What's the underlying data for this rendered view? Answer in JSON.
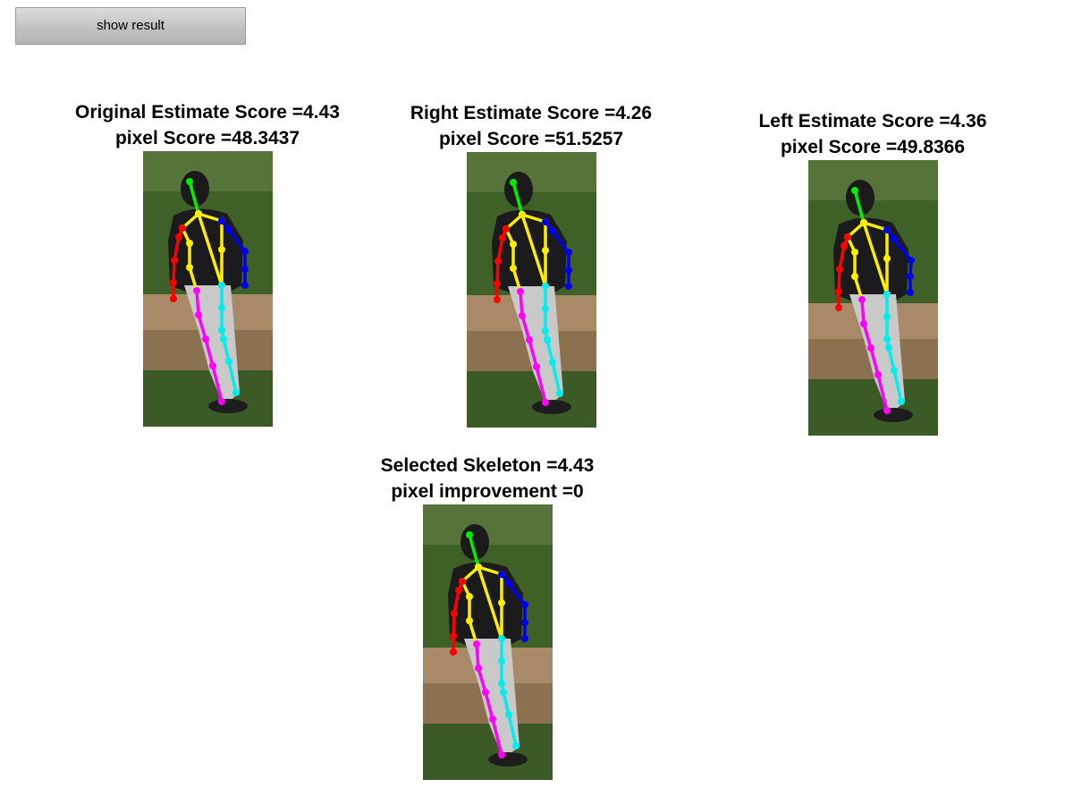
{
  "toolbar": {
    "show_result_label": "show result"
  },
  "panels": [
    {
      "id": "original",
      "line1": "Original Estimate Score =4.43",
      "line2": "pixel Score =48.3437"
    },
    {
      "id": "right",
      "line1": "Right Estimate Score =4.26",
      "line2": "pixel Score =51.5257"
    },
    {
      "id": "left",
      "line1": "Left Estimate Score =4.36",
      "line2": "pixel Score =49.8366"
    },
    {
      "id": "selected",
      "line1": "Selected Skeleton =4.43",
      "line2": "pixel improvement =0"
    }
  ],
  "colors": {
    "head": "#00ee00",
    "torso": "#ffee00",
    "arm_right": "#ff0000",
    "arm_left": "#0000ee",
    "leg_right": "#ff00ff",
    "leg_left": "#00eeee"
  }
}
